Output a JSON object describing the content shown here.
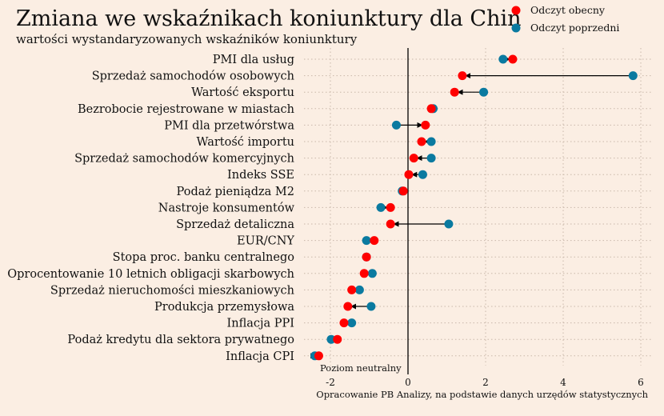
{
  "chart_data": {
    "type": "dumbbell",
    "title": "Zmiana we wskaźnikach koniunktury dla Chin",
    "subtitle": "wartości wystandaryzowanych wskaźników koniunktury",
    "source": "Opracowanie PB Analizy, na podstawie danych urzędów statystycznych",
    "annotation": "Poziom neutralny",
    "categories": [
      "PMI dla usług",
      "Sprzedaż samochodów osobowych",
      "Wartość eksportu",
      "Bezrobocie rejestrowane w miastach",
      "PMI dla przetwórstwa",
      "Wartość importu",
      "Sprzedaż samochodów komercyjnych",
      "Indeks SSE",
      "Podaż pieniądza M2",
      "Nastroje konsumentów",
      "Sprzedaż detaliczna",
      "EUR/CNY",
      "Stopa proc. banku centralnego",
      "Oprocentowanie 10 letnich obligacji skarbowych",
      "Sprzedaż nieruchomości mieszkaniowych",
      "Produkcja przemysłowa",
      "Inflacja PPI",
      "Podaż kredytu dla sektora prywatnego",
      "Inflacja CPI"
    ],
    "series": [
      {
        "name": "Odczyt obecny",
        "color": "#ff0000",
        "values": [
          2.7,
          1.4,
          1.2,
          0.6,
          0.45,
          0.35,
          0.15,
          0.02,
          -0.12,
          -0.45,
          -0.45,
          -0.87,
          -1.07,
          -1.13,
          -1.45,
          -1.55,
          -1.65,
          -1.82,
          -2.3
        ]
      },
      {
        "name": "Odczyt poprzedni",
        "color": "#0a7aa0",
        "values": [
          2.45,
          5.8,
          1.95,
          0.65,
          -0.3,
          0.6,
          0.6,
          0.38,
          -0.15,
          -0.7,
          1.05,
          -1.07,
          -1.07,
          -0.92,
          -1.25,
          -0.95,
          -1.45,
          -1.98,
          -2.4
        ]
      }
    ],
    "xlim": [
      -2.5,
      6.2
    ],
    "xticks": [
      "-2",
      "0",
      "2",
      "4",
      "6"
    ],
    "xtick_values": [
      -2,
      0,
      2,
      4,
      6
    ],
    "reference_line": 0,
    "grid": true,
    "legend": "top-right"
  }
}
